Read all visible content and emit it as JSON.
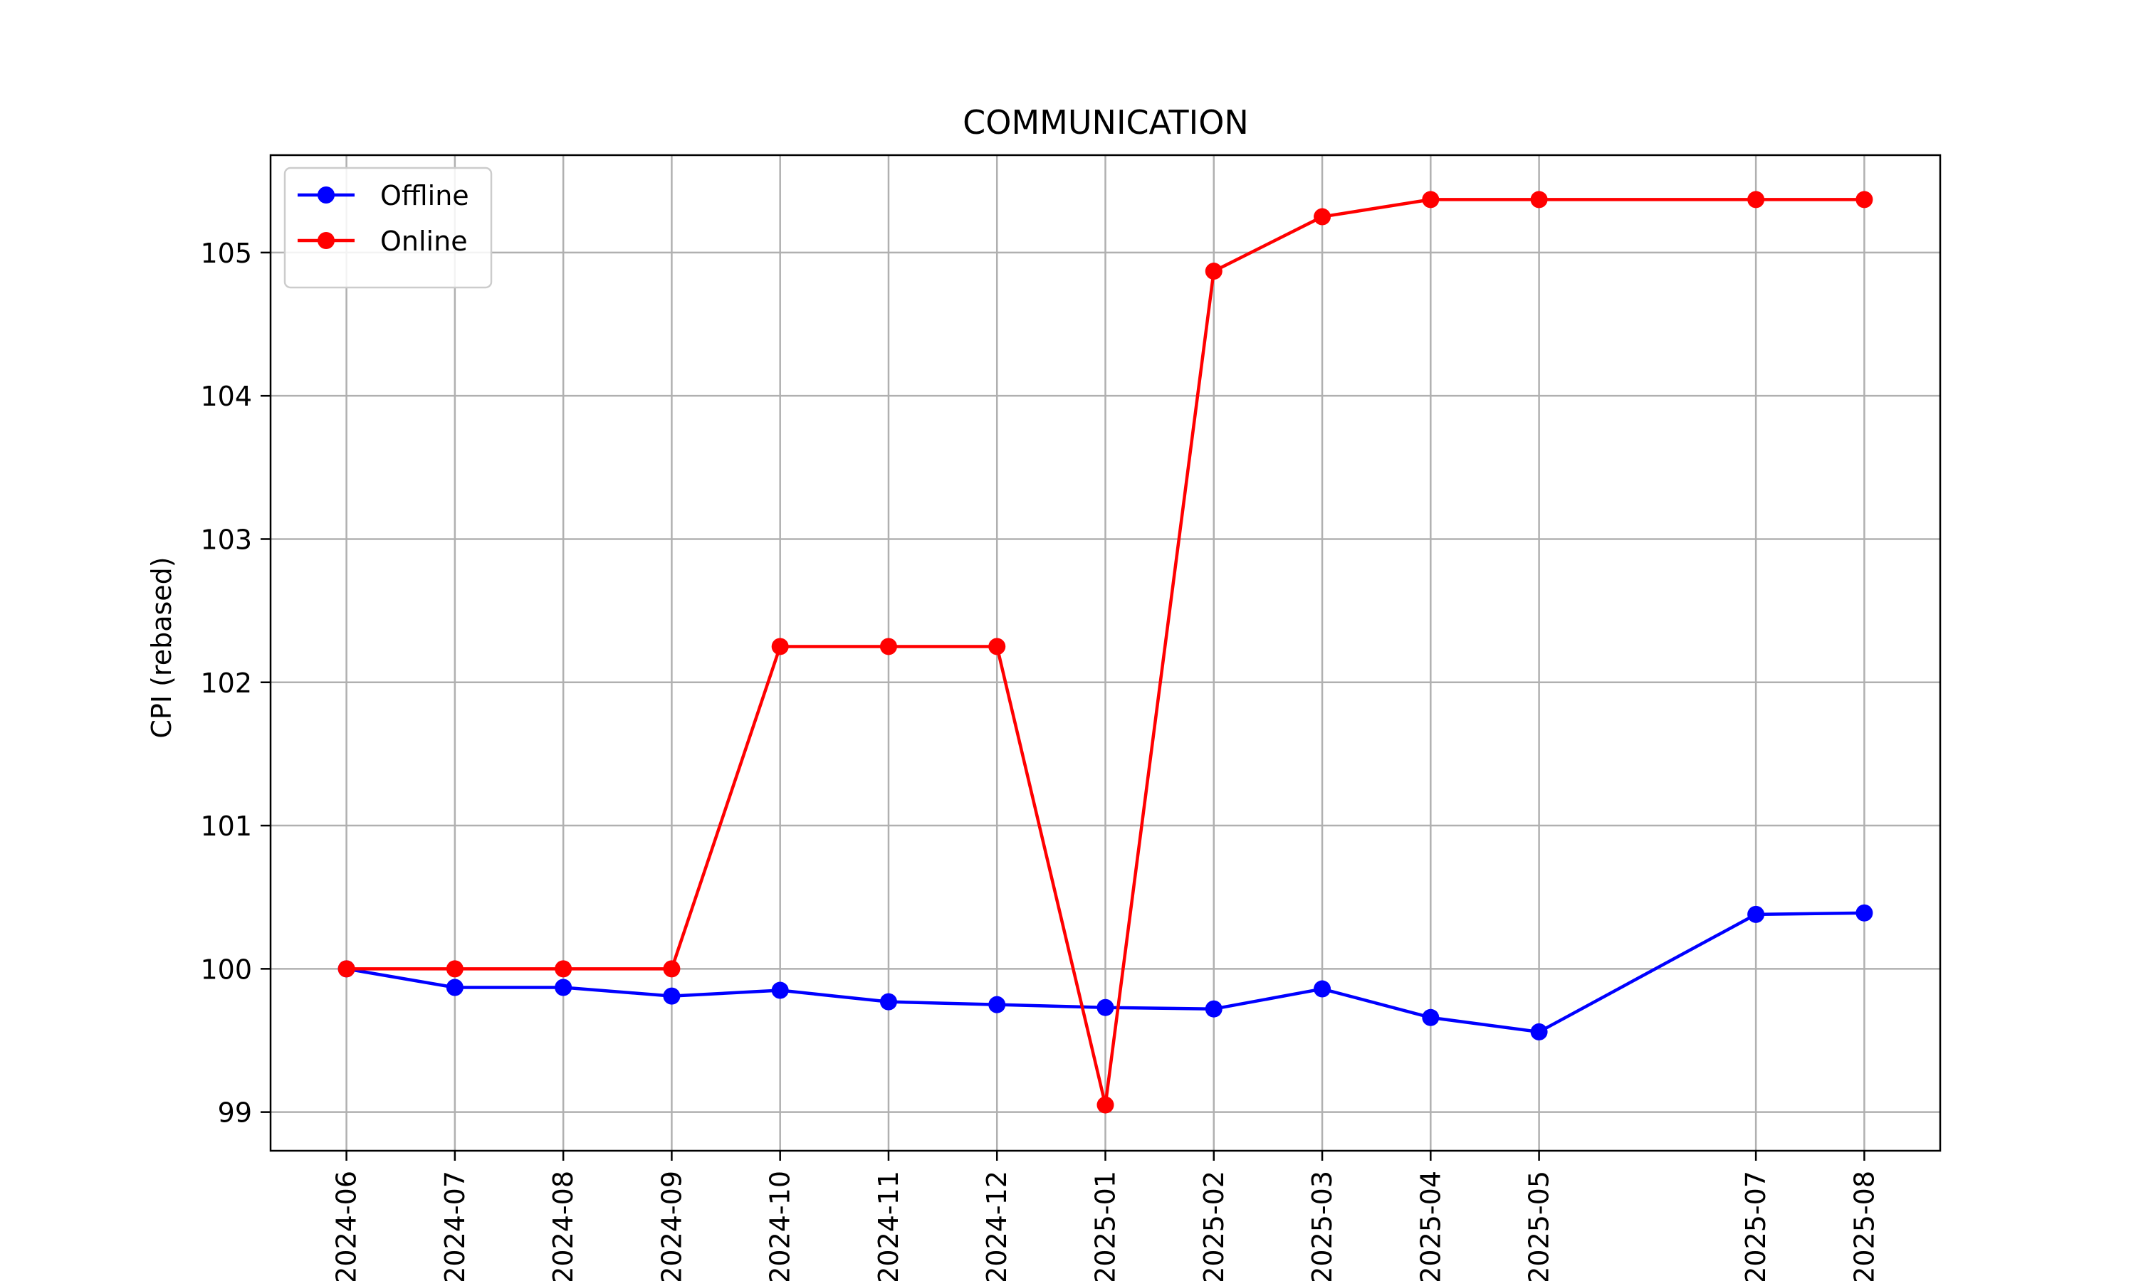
{
  "chart_data": {
    "type": "line",
    "title": "COMMUNICATION",
    "xlabel": "",
    "ylabel": "CPI (rebased)",
    "x": [
      "2024-06",
      "2024-07",
      "2024-08",
      "2024-09",
      "2024-10",
      "2024-11",
      "2024-12",
      "2025-01",
      "2025-02",
      "2025-03",
      "2025-04",
      "2025-05",
      "2025-07",
      "2025-08"
    ],
    "x_axis": "date",
    "ylim": [
      98.73,
      105.68
    ],
    "yticks": [
      99,
      100,
      101,
      102,
      103,
      104,
      105
    ],
    "grid": true,
    "legend_position": "top-left",
    "series": [
      {
        "name": "Offline",
        "color": "#0000ff",
        "marker": "circle",
        "values": [
          100.0,
          99.87,
          99.87,
          99.81,
          99.85,
          99.77,
          99.75,
          99.73,
          99.72,
          99.86,
          99.66,
          99.56,
          100.38,
          100.39
        ]
      },
      {
        "name": "Online",
        "color": "#ff0000",
        "marker": "circle",
        "values": [
          100.0,
          100.0,
          100.0,
          100.0,
          102.25,
          102.25,
          102.25,
          99.05,
          104.87,
          105.25,
          105.37,
          105.37,
          105.37,
          105.37
        ]
      }
    ]
  }
}
